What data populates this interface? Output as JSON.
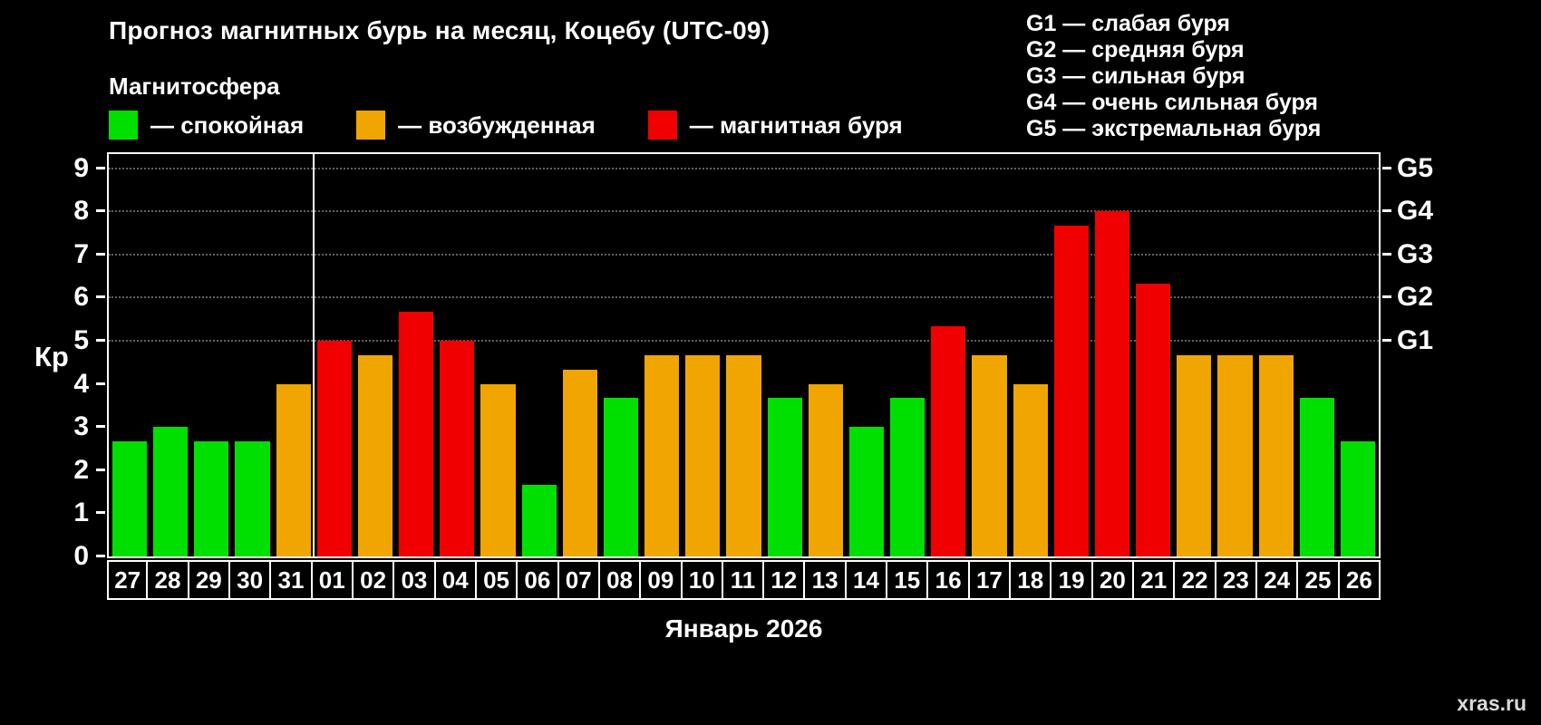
{
  "header": {
    "title": "Прогноз магнитных бурь на месяц, Коцебу (UTC-09)",
    "subtitle": "Магнитосфера"
  },
  "legend": {
    "items": [
      {
        "label": "— спокойная",
        "state": "quiet",
        "color": "#00e000"
      },
      {
        "label": "— возбужденная",
        "state": "excited",
        "color": "#f0a500"
      },
      {
        "label": "— магнитная буря",
        "state": "storm",
        "color": "#f00000"
      }
    ]
  },
  "storm_legend": [
    "G1 — слабая буря",
    "G2 — средняя буря",
    "G3 — сильная буря",
    "G4 — очень сильная буря",
    "G5 — экстремальная буря"
  ],
  "chart_data": {
    "type": "bar",
    "title": "Прогноз магнитных бурь на месяц, Коцебу (UTC-09)",
    "categories": [
      "27",
      "28",
      "29",
      "30",
      "31",
      "01",
      "02",
      "03",
      "04",
      "05",
      "06",
      "07",
      "08",
      "09",
      "10",
      "11",
      "12",
      "13",
      "14",
      "15",
      "16",
      "17",
      "18",
      "19",
      "20",
      "21",
      "22",
      "23",
      "24",
      "25",
      "26"
    ],
    "values": [
      2.67,
      3.0,
      2.67,
      2.67,
      4.0,
      5.0,
      4.67,
      5.67,
      5.0,
      4.0,
      1.67,
      4.33,
      3.67,
      4.67,
      4.67,
      4.67,
      3.67,
      4.0,
      3.0,
      3.67,
      5.33,
      4.67,
      4.0,
      7.67,
      8.0,
      6.33,
      4.67,
      4.67,
      4.67,
      3.67,
      2.67
    ],
    "states": [
      "quiet",
      "quiet",
      "quiet",
      "quiet",
      "excited",
      "storm",
      "excited",
      "storm",
      "storm",
      "excited",
      "quiet",
      "excited",
      "quiet",
      "excited",
      "excited",
      "excited",
      "quiet",
      "excited",
      "quiet",
      "quiet",
      "storm",
      "excited",
      "excited",
      "storm",
      "storm",
      "storm",
      "excited",
      "excited",
      "excited",
      "quiet",
      "quiet"
    ],
    "state_colors": {
      "quiet": "#00e000",
      "excited": "#f0a500",
      "storm": "#f00000"
    },
    "ylabel": "Кр",
    "xlabel": "Январь 2026",
    "ylim": [
      0,
      9.33
    ],
    "yticks": [
      0,
      1,
      2,
      3,
      4,
      5,
      6,
      7,
      8,
      9
    ],
    "right_axis_ticks": [
      {
        "label": "G1",
        "value": 5
      },
      {
        "label": "G2",
        "value": 6
      },
      {
        "label": "G3",
        "value": 7
      },
      {
        "label": "G4",
        "value": 8
      },
      {
        "label": "G5",
        "value": 9
      }
    ],
    "month_separator_after_index": 4,
    "grid": "dotted-at-G-levels",
    "legend_position": "top"
  },
  "footer": {
    "watermark": "xras.ru"
  }
}
